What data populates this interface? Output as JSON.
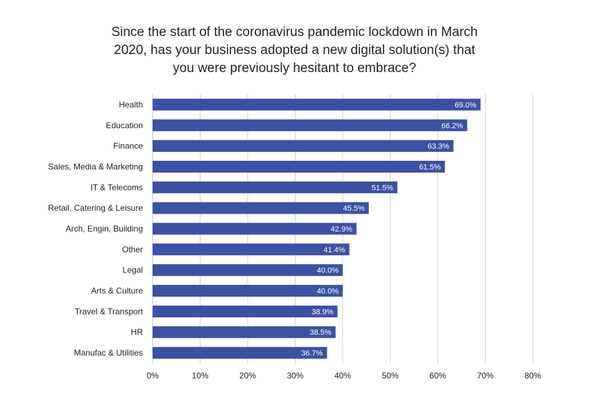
{
  "chart_data": {
    "type": "bar",
    "orientation": "horizontal",
    "title_lines": [
      "Since the start of the coronavirus pandemic lockdown in March",
      "2020, has your business adopted a new digital solution(s) that",
      "you were previously hesitant to embrace?"
    ],
    "categories": [
      "Health",
      "Education",
      "Finance",
      "Sales, Media & Marketing",
      "IT & Telecoms",
      "Retail, Catering & Leisure",
      "Arch, Engin, Building",
      "Other",
      "Legal",
      "Arts & Culture",
      "Travel & Transport",
      "HR",
      "Manufac & Utilities"
    ],
    "values": [
      69.0,
      66.2,
      63.3,
      61.5,
      51.5,
      45.5,
      42.9,
      41.4,
      40.0,
      40.0,
      38.9,
      38.5,
      36.7
    ],
    "data_labels": [
      "69.0%",
      "66.2%",
      "63.3%",
      "61.5%",
      "51.5%",
      "45.5%",
      "42.9%",
      "41.4%",
      "40.0%",
      "40.0%",
      "38.9%",
      "38.5%",
      "36.7%"
    ],
    "xlim": [
      0,
      80
    ],
    "x_ticks": [
      0,
      10,
      20,
      30,
      40,
      50,
      60,
      70,
      80
    ],
    "x_tick_labels": [
      "0%",
      "10%",
      "20%",
      "30%",
      "40%",
      "50%",
      "60%",
      "70%",
      "80%"
    ],
    "grid": "vertical",
    "legend": "none",
    "bar_color": "#3a52a3",
    "label_color": "#ffffff",
    "text_color": "#222222",
    "grid_color": "#d0d0d0"
  }
}
